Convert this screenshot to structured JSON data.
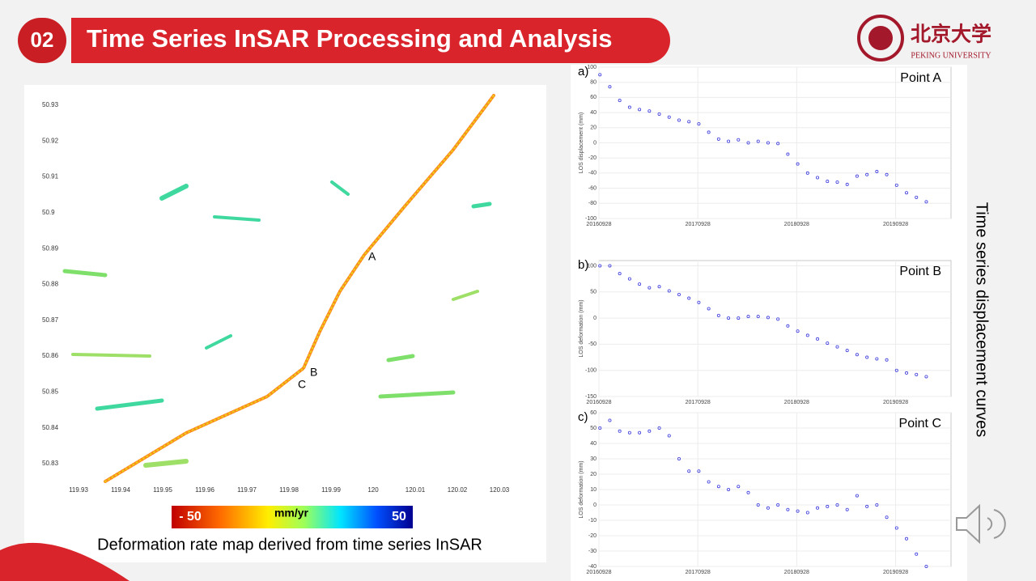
{
  "header": {
    "number": "02",
    "title": "Time Series InSAR Processing and Analysis",
    "logo_cn": "北京大学",
    "logo_en": "PEKING UNIVERSITY"
  },
  "map": {
    "xticks": [
      119.93,
      119.94,
      119.95,
      119.96,
      119.97,
      119.98,
      119.99,
      120,
      120.01,
      120.02,
      120.03
    ],
    "yticks": [
      50.93,
      50.92,
      50.91,
      50.9,
      50.89,
      50.88,
      50.87,
      50.86,
      50.85,
      50.84,
      50.83
    ],
    "point_labels": [
      "A",
      "B",
      "C"
    ],
    "colorbar_min": "- 50",
    "colorbar_unit": "mm/yr",
    "colorbar_max": "50",
    "caption": "Deformation rate map derived from time series InSAR"
  },
  "side_label": "Time series displacement curves",
  "chart_data": [
    {
      "type": "scatter",
      "panel": "a)",
      "title": "Point A",
      "y_label": "LOS displacement (mm)",
      "color": "#3b3bdd",
      "grid": true,
      "xlim": [
        2016.74,
        2020.3
      ],
      "ylim": [
        -100,
        100
      ],
      "xticks": [
        {
          "value": 2016.74,
          "label": "20160928"
        },
        {
          "value": 2017.74,
          "label": "20170928"
        },
        {
          "value": 2018.74,
          "label": "20180928"
        },
        {
          "value": 2019.74,
          "label": "20190928"
        }
      ],
      "yticks": [
        100,
        80,
        60,
        40,
        20,
        0,
        -20,
        -40,
        -60,
        -80,
        -100
      ],
      "x": [
        2016.75,
        2016.85,
        2016.95,
        2017.05,
        2017.15,
        2017.25,
        2017.35,
        2017.45,
        2017.55,
        2017.65,
        2017.75,
        2017.85,
        2017.95,
        2018.05,
        2018.15,
        2018.25,
        2018.35,
        2018.45,
        2018.55,
        2018.65,
        2018.75,
        2018.85,
        2018.95,
        2019.05,
        2019.15,
        2019.25,
        2019.35,
        2019.45,
        2019.55,
        2019.65,
        2019.75,
        2019.85,
        2019.95,
        2020.05
      ],
      "values": [
        90,
        74,
        56,
        47,
        44,
        42,
        38,
        34,
        30,
        28,
        25,
        14,
        5,
        2,
        4,
        0,
        2,
        0,
        -1,
        -15,
        -28,
        -40,
        -46,
        -51,
        -52,
        -55,
        -44,
        -42,
        -38,
        -42,
        -56,
        -66,
        -72,
        -78
      ]
    },
    {
      "type": "scatter",
      "panel": "b)",
      "title": "Point B",
      "y_label": "LOS deformation (mm)",
      "color": "#3b3bdd",
      "grid": true,
      "xlim": [
        2016.74,
        2020.3
      ],
      "ylim": [
        -150,
        110
      ],
      "xticks": [
        {
          "value": 2016.74,
          "label": "20160928"
        },
        {
          "value": 2017.74,
          "label": "20170928"
        },
        {
          "value": 2018.74,
          "label": "20180928"
        },
        {
          "value": 2019.74,
          "label": "20190928"
        }
      ],
      "yticks": [
        100,
        50,
        0,
        -50,
        -100,
        -150
      ],
      "x": [
        2016.75,
        2016.85,
        2016.95,
        2017.05,
        2017.15,
        2017.25,
        2017.35,
        2017.45,
        2017.55,
        2017.65,
        2017.75,
        2017.85,
        2017.95,
        2018.05,
        2018.15,
        2018.25,
        2018.35,
        2018.45,
        2018.55,
        2018.65,
        2018.75,
        2018.85,
        2018.95,
        2019.05,
        2019.15,
        2019.25,
        2019.35,
        2019.45,
        2019.55,
        2019.65,
        2019.75,
        2019.85,
        2019.95,
        2020.05
      ],
      "values": [
        100,
        100,
        85,
        75,
        65,
        58,
        60,
        52,
        45,
        38,
        30,
        18,
        5,
        0,
        0,
        3,
        3,
        1,
        -2,
        -15,
        -25,
        -33,
        -40,
        -48,
        -55,
        -62,
        -70,
        -75,
        -78,
        -80,
        -100,
        -105,
        -108,
        -112
      ]
    },
    {
      "type": "scatter",
      "panel": "c)",
      "title": "Point C",
      "y_label": "LOS deformation (mm)",
      "color": "#3b3bdd",
      "grid": true,
      "xlim": [
        2016.74,
        2020.3
      ],
      "ylim": [
        -40,
        60
      ],
      "xticks": [
        {
          "value": 2016.74,
          "label": "20160928"
        },
        {
          "value": 2017.74,
          "label": "20170928"
        },
        {
          "value": 2018.74,
          "label": "20180928"
        },
        {
          "value": 2019.74,
          "label": "20190928"
        }
      ],
      "yticks": [
        60,
        50,
        40,
        30,
        20,
        10,
        0,
        -10,
        -20,
        -30,
        -40
      ],
      "x": [
        2016.75,
        2016.85,
        2016.95,
        2017.05,
        2017.15,
        2017.25,
        2017.35,
        2017.45,
        2017.55,
        2017.65,
        2017.75,
        2017.85,
        2017.95,
        2018.05,
        2018.15,
        2018.25,
        2018.35,
        2018.45,
        2018.55,
        2018.65,
        2018.75,
        2018.85,
        2018.95,
        2019.05,
        2019.15,
        2019.25,
        2019.35,
        2019.45,
        2019.55,
        2019.65,
        2019.75,
        2019.85,
        2019.95,
        2020.05
      ],
      "values": [
        50,
        55,
        48,
        47,
        47,
        48,
        50,
        45,
        30,
        22,
        22,
        15,
        12,
        10,
        12,
        8,
        0,
        -2,
        0,
        -3,
        -4,
        -5,
        -2,
        -1,
        0,
        -3,
        6,
        -1,
        0,
        -8,
        -15,
        -22,
        -32,
        -40
      ]
    }
  ]
}
